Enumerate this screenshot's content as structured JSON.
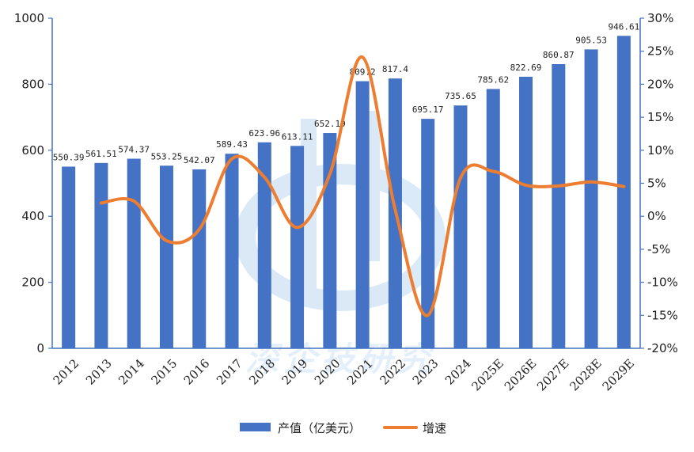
{
  "chart_data": {
    "type": "bar",
    "categories": [
      "2012",
      "2013",
      "2014",
      "2015",
      "2016",
      "2017",
      "2018",
      "2019",
      "2020",
      "2021",
      "2022",
      "2023",
      "2024",
      "2025E",
      "2026E",
      "2027E",
      "2028E",
      "2029E"
    ],
    "series": [
      {
        "name": "产值（亿美元）",
        "type": "bar",
        "axis": "left",
        "color": "#4472C4",
        "values": [
          550.39,
          561.51,
          574.37,
          553.25,
          542.07,
          589.43,
          623.96,
          613.11,
          652.19,
          809.2,
          817.4,
          695.17,
          735.65,
          785.62,
          822.69,
          860.87,
          905.53,
          946.61
        ],
        "labels": [
          "550.39",
          "561.51",
          "574.37",
          "553.25",
          "542.07",
          "589.43",
          "623.96",
          "613.11",
          "652.19",
          "809.2",
          "817.4",
          "695.17",
          "735.65",
          "785.62",
          "822.69",
          "860.87",
          "905.53",
          "946.61"
        ]
      },
      {
        "name": "增速",
        "type": "line",
        "axis": "right",
        "color": "#ED7D31",
        "values": [
          null,
          2.0,
          2.3,
          -3.7,
          -2.0,
          8.7,
          5.9,
          -1.7,
          6.4,
          24.1,
          1.0,
          -15.0,
          5.8,
          6.8,
          4.7,
          4.6,
          5.2,
          4.5
        ]
      }
    ],
    "ylim": [
      0,
      1000
    ],
    "yticks": [
      "0",
      "200",
      "400",
      "600",
      "800",
      "1000"
    ],
    "y2lim": [
      -20,
      30
    ],
    "y2ticks": [
      "-20%",
      "-15%",
      "-10%",
      "-5%",
      "0%",
      "5%",
      "10%",
      "15%",
      "20%",
      "25%",
      "30%"
    ],
    "legend": "bottom",
    "grid": false,
    "watermark_text": "深企技研究"
  }
}
